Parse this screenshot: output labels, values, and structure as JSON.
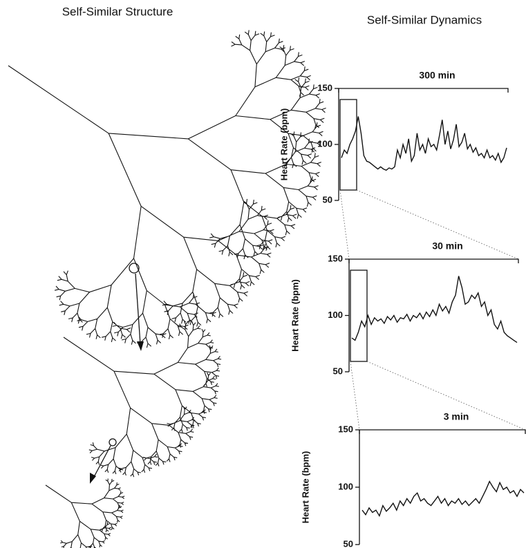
{
  "headings": [
    "Self-Similar Structure",
    "Self-Similar Dynamics"
  ],
  "chart_data": [
    {
      "type": "line",
      "annotation": "300 min",
      "y_label": "Heart Rate (bpm)",
      "ylim": [
        50,
        150
      ],
      "yticks": [
        50,
        100,
        150
      ],
      "color": "#111111",
      "values": [
        88,
        95,
        92,
        100,
        105,
        112,
        125,
        110,
        90,
        85,
        84,
        82,
        80,
        78,
        80,
        78,
        77,
        79,
        78,
        80,
        95,
        88,
        100,
        92,
        105,
        85,
        90,
        110,
        95,
        100,
        92,
        105,
        98,
        100,
        95,
        108,
        122,
        100,
        112,
        96,
        104,
        118,
        98,
        102,
        110,
        96,
        100,
        93,
        97,
        90,
        92,
        88,
        95,
        88,
        90,
        86,
        92,
        84,
        88,
        97
      ]
    },
    {
      "type": "line",
      "annotation": "30 min",
      "y_label": "Heart Rate (bpm)",
      "ylim": [
        50,
        150
      ],
      "yticks": [
        50,
        100,
        150
      ],
      "color": "#111111",
      "values": [
        80,
        78,
        85,
        95,
        90,
        100,
        92,
        98,
        95,
        97,
        93,
        99,
        96,
        100,
        94,
        98,
        97,
        101,
        95,
        100,
        98,
        102,
        97,
        103,
        99,
        105,
        100,
        110,
        104,
        108,
        102,
        112,
        118,
        135,
        125,
        110,
        112,
        118,
        115,
        120,
        108,
        112,
        100,
        105,
        92,
        88,
        95,
        85,
        82,
        80,
        78,
        76
      ]
    },
    {
      "type": "line",
      "annotation": "3 min",
      "y_label": "Heart Rate (bpm)",
      "ylim": [
        50,
        150
      ],
      "yticks": [
        50,
        100,
        150
      ],
      "color": "#111111",
      "values": [
        80,
        76,
        82,
        78,
        80,
        75,
        84,
        79,
        82,
        86,
        80,
        88,
        84,
        90,
        86,
        92,
        95,
        88,
        90,
        86,
        84,
        88,
        92,
        86,
        90,
        84,
        88,
        86,
        90,
        85,
        88,
        84,
        87,
        90,
        86,
        92,
        98,
        105,
        100,
        96,
        104,
        98,
        100,
        95,
        97,
        92,
        98,
        95
      ]
    }
  ]
}
